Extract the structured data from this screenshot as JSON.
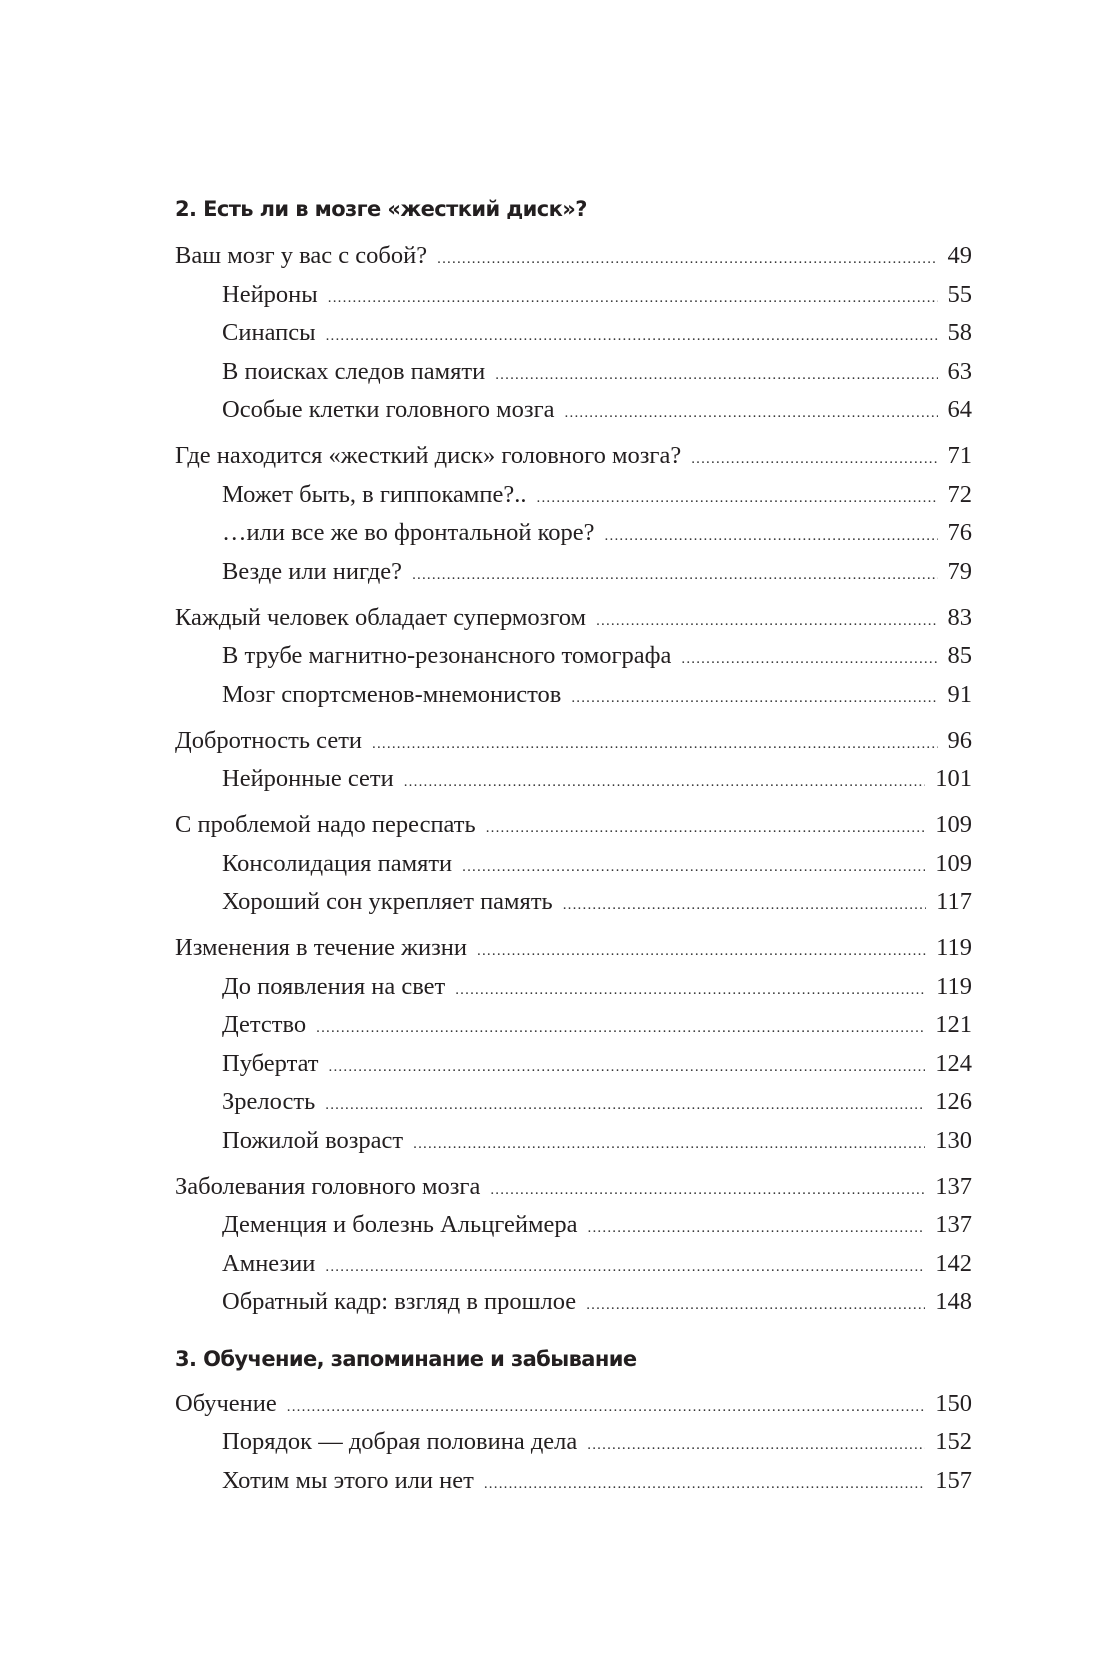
{
  "sections": [
    {
      "heading": "2. Есть ли в мозге «жесткий диск»?",
      "groups": [
        [
          {
            "title": "Ваш мозг у вас с собой?",
            "page": "49",
            "level": 1
          },
          {
            "title": "Нейроны",
            "page": "55",
            "level": 2
          },
          {
            "title": "Синапсы",
            "page": "58",
            "level": 2
          },
          {
            "title": "В поисках следов памяти",
            "page": "63",
            "level": 2
          },
          {
            "title": "Особые клетки головного мозга",
            "page": "64",
            "level": 2
          }
        ],
        [
          {
            "title": "Где находится «жесткий диск» головного мозга?",
            "page": "71",
            "level": 1
          },
          {
            "title": "Может быть, в гиппокампе?..",
            "page": "72",
            "level": 2
          },
          {
            "title": "…или все же во фронтальной коре?",
            "page": "76",
            "level": 2
          },
          {
            "title": "Везде или нигде?",
            "page": "79",
            "level": 2
          }
        ],
        [
          {
            "title": "Каждый человек обладает супермозгом",
            "page": "83",
            "level": 1
          },
          {
            "title": "В трубе магнитно-резонансного томографа",
            "page": "85",
            "level": 2
          },
          {
            "title": "Мозг спортсменов-мнемонистов",
            "page": "91",
            "level": 2
          }
        ],
        [
          {
            "title": "Добротность сети",
            "page": "96",
            "level": 1
          },
          {
            "title": "Нейронные сети",
            "page": "101",
            "level": 2
          }
        ],
        [
          {
            "title": "С проблемой надо переспать",
            "page": "109",
            "level": 1
          },
          {
            "title": "Консолидация памяти",
            "page": "109",
            "level": 2
          },
          {
            "title": "Хороший сон укрепляет память",
            "page": "117",
            "level": 2
          }
        ],
        [
          {
            "title": "Изменения в течение жизни",
            "page": "119",
            "level": 1
          },
          {
            "title": "До появления на свет",
            "page": "119",
            "level": 2
          },
          {
            "title": "Детство",
            "page": "121",
            "level": 2
          },
          {
            "title": "Пубертат",
            "page": "124",
            "level": 2
          },
          {
            "title": "Зрелость",
            "page": "126",
            "level": 2
          },
          {
            "title": "Пожилой возраст",
            "page": "130",
            "level": 2
          }
        ],
        [
          {
            "title": "Заболевания головного мозга",
            "page": "137",
            "level": 1
          },
          {
            "title": "Деменция и болезнь Альцгеймера",
            "page": "137",
            "level": 2
          },
          {
            "title": "Амнезии",
            "page": "142",
            "level": 2
          },
          {
            "title": "Обратный кадр: взгляд в прошлое",
            "page": "148",
            "level": 2
          }
        ]
      ]
    },
    {
      "heading": "3. Обучение, запоминание и забывание",
      "groups": [
        [
          {
            "title": "Обучение",
            "page": "150",
            "level": 1
          },
          {
            "title": "Порядок — добрая половина дела",
            "page": "152",
            "level": 2
          },
          {
            "title": "Хотим мы этого или нет",
            "page": "157",
            "level": 2
          }
        ]
      ]
    }
  ]
}
